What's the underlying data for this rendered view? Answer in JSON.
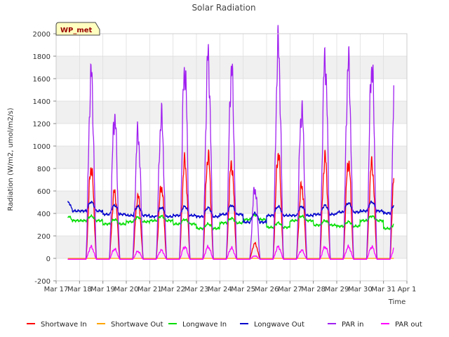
{
  "chart_data": {
    "type": "line",
    "title": "Solar Radiation",
    "xlabel": "Time",
    "ylabel": "Radiation (W/m2, umol/m2/s)",
    "ylim": [
      -200,
      2000
    ],
    "y_ticks": [
      -200,
      0,
      200,
      400,
      600,
      800,
      1000,
      1200,
      1400,
      1600,
      1800,
      2000
    ],
    "y_tick_labels": [
      "-200",
      "0",
      "200",
      "400",
      "600",
      "800",
      "1000",
      "1200",
      "1400",
      "1600",
      "1800",
      "2000"
    ],
    "xlim": [
      17,
      32
    ],
    "x_ticks": [
      17,
      18,
      19,
      20,
      21,
      22,
      23,
      24,
      25,
      26,
      27,
      28,
      29,
      30,
      31,
      32
    ],
    "x_tick_labels": [
      "Mar 17",
      "Mar 18",
      "Mar 19",
      "Mar 20",
      "Mar 21",
      "Mar 22",
      "Mar 23",
      "Mar 24",
      "Mar 25",
      "Mar 26",
      "Mar 27",
      "Mar 28",
      "Mar 29",
      "Mar 30",
      "Mar 31",
      "Apr 1"
    ],
    "grid": true,
    "background_bands": true,
    "station_badge": "WP_met",
    "legend_position": "bottom",
    "days": [
      18,
      19,
      20,
      21,
      22,
      23,
      24,
      25,
      26,
      27,
      28,
      29,
      30,
      31
    ],
    "series": [
      {
        "name": "Shortwave In",
        "color": "#ff0000",
        "daily_peak": [
          820,
          600,
          560,
          650,
          870,
          920,
          850,
          140,
          940,
          660,
          900,
          870,
          850,
          900
        ],
        "midday_overnight": 0
      },
      {
        "name": "Shortwave Out",
        "color": "#ffa500",
        "daily_peak": [
          0,
          0,
          0,
          0,
          0,
          0,
          0,
          0,
          0,
          0,
          0,
          0,
          0,
          0
        ],
        "midday_overnight": 0
      },
      {
        "name": "Longwave In",
        "color": "#00dd00",
        "daily_level": [
          360,
          330,
          350,
          360,
          330,
          290,
          340,
          370,
          300,
          360,
          320,
          310,
          360,
          290
        ]
      },
      {
        "name": "Longwave Out",
        "color": "#0000cc",
        "daily_level": [
          470,
          440,
          430,
          420,
          430,
          420,
          440,
          370,
          430,
          430,
          440,
          460,
          470,
          450
        ]
      },
      {
        "name": "PAR in",
        "color": "#a020f0",
        "daily_peak": [
          1630,
          1270,
          1120,
          1260,
          1700,
          1790,
          1680,
          630,
          1880,
          1330,
          1780,
          1730,
          1720,
          1750
        ]
      },
      {
        "name": "PAR out",
        "color": "#ff00ff",
        "daily_peak": [
          110,
          90,
          70,
          80,
          110,
          110,
          100,
          30,
          110,
          80,
          110,
          110,
          110,
          110
        ]
      }
    ]
  }
}
